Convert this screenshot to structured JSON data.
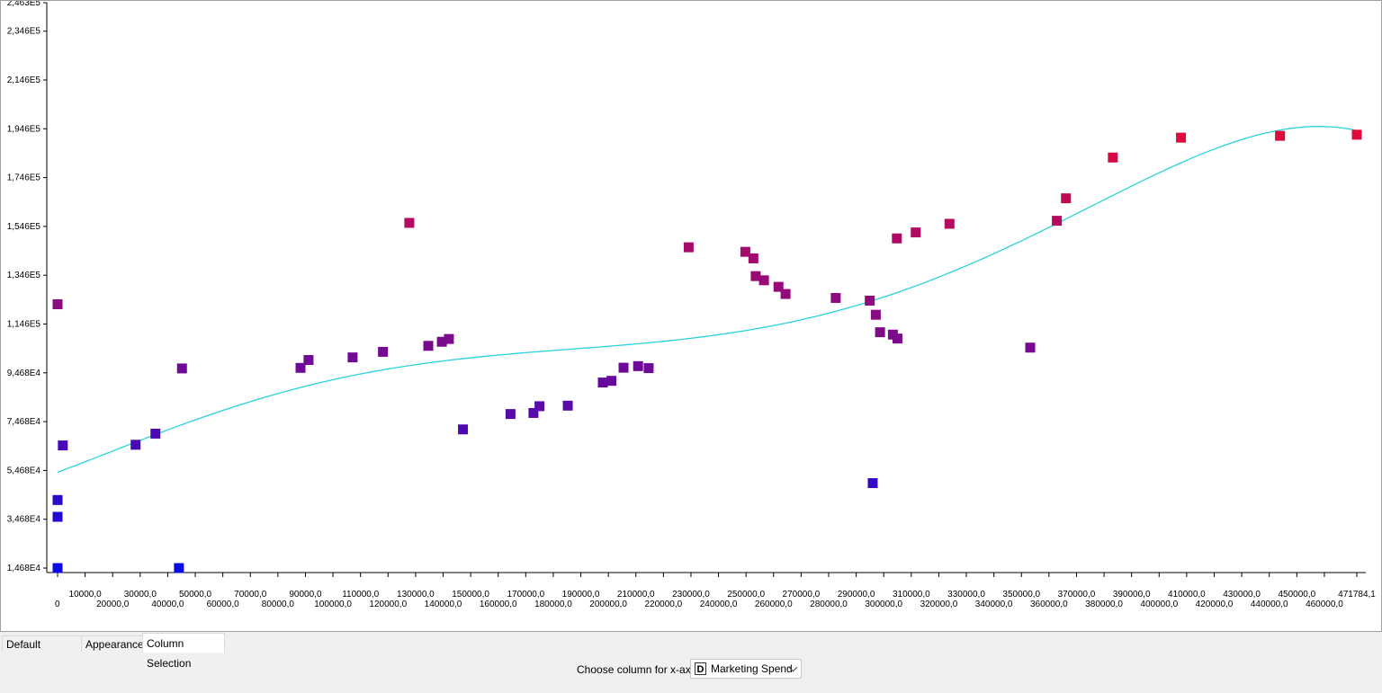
{
  "chart_data": {
    "type": "scatter",
    "x_ticks": [
      "0",
      "10000,0",
      "20000,0",
      "30000,0",
      "40000,0",
      "50000,0",
      "60000,0",
      "70000,0",
      "80000,0",
      "90000,0",
      "100000,0",
      "110000,0",
      "120000,0",
      "130000,0",
      "140000,0",
      "150000,0",
      "160000,0",
      "170000,0",
      "180000,0",
      "190000,0",
      "200000,0",
      "210000,0",
      "220000,0",
      "230000,0",
      "240000,0",
      "250000,0",
      "260000,0",
      "270000,0",
      "280000,0",
      "290000,0",
      "300000,0",
      "310000,0",
      "320000,0",
      "330000,0",
      "340000,0",
      "350000,0",
      "360000,0",
      "370000,0",
      "380000,0",
      "390000,0",
      "400000,0",
      "410000,0",
      "420000,0",
      "430000,0",
      "440000,0",
      "450000,0",
      "460000,0",
      "471784,1"
    ],
    "y_ticks": [
      {
        "label": "1,468E4",
        "value": 14681
      },
      {
        "label": "3,468E4",
        "value": 34681
      },
      {
        "label": "5,468E4",
        "value": 54681
      },
      {
        "label": "7,468E4",
        "value": 74681
      },
      {
        "label": "9,468E4",
        "value": 94681
      },
      {
        "label": "1,146E5",
        "value": 114681
      },
      {
        "label": "1,346E5",
        "value": 134681
      },
      {
        "label": "1,546E5",
        "value": 154681
      },
      {
        "label": "1,746E5",
        "value": 174681
      },
      {
        "label": "1,946E5",
        "value": 194681
      },
      {
        "label": "2,146E5",
        "value": 214681
      },
      {
        "label": "2,346E5",
        "value": 234681
      },
      {
        "label": "2,463E5",
        "value": 246347
      }
    ],
    "xlim": [
      0,
      471784.1
    ],
    "ylim": [
      14681,
      246347
    ],
    "points": [
      {
        "x": 0,
        "y": 122777
      },
      {
        "x": 1903,
        "y": 64926
      },
      {
        "x": 0,
        "y": 42559
      },
      {
        "x": 0,
        "y": 35673
      },
      {
        "x": 0,
        "y": 14681
      },
      {
        "x": 28334,
        "y": 65200
      },
      {
        "x": 35534,
        "y": 69759
      },
      {
        "x": 44070,
        "y": 14681
      },
      {
        "x": 45173,
        "y": 96479
      },
      {
        "x": 88219,
        "y": 96712
      },
      {
        "x": 91131,
        "y": 99937
      },
      {
        "x": 107138,
        "y": 101004
      },
      {
        "x": 118148,
        "y": 103282
      },
      {
        "x": 127716,
        "y": 156123
      },
      {
        "x": 134615,
        "y": 105734
      },
      {
        "x": 139553,
        "y": 107404
      },
      {
        "x": 142107,
        "y": 108552
      },
      {
        "x": 147198,
        "y": 71498
      },
      {
        "x": 164470,
        "y": 77798
      },
      {
        "x": 172795,
        "y": 78240
      },
      {
        "x": 174999,
        "y": 81006
      },
      {
        "x": 185265,
        "y": 81229
      },
      {
        "x": 198000,
        "y": 90708
      },
      {
        "x": 201126,
        "y": 91400
      },
      {
        "x": 205517,
        "y": 96778
      },
      {
        "x": 210797,
        "y": 97427
      },
      {
        "x": 214634,
        "y": 96605
      },
      {
        "x": 229161,
        "y": 146122
      },
      {
        "x": 249744,
        "y": 144259
      },
      {
        "x": 252664,
        "y": 141586
      },
      {
        "x": 253512,
        "y": 134307
      },
      {
        "x": 256513,
        "y": 132602
      },
      {
        "x": 261776,
        "y": 129917
      },
      {
        "x": 264346,
        "y": 126993
      },
      {
        "x": 282574,
        "y": 125370
      },
      {
        "x": 294920,
        "y": 124267
      },
      {
        "x": 296000,
        "y": 49490
      },
      {
        "x": 297114,
        "y": 118474
      },
      {
        "x": 298664,
        "y": 111313
      },
      {
        "x": 303319,
        "y": 110352
      },
      {
        "x": 304981,
        "y": 108733
      },
      {
        "x": 304768,
        "y": 149760
      },
      {
        "x": 311613,
        "y": 152212
      },
      {
        "x": 323877,
        "y": 155753
      },
      {
        "x": 353183,
        "y": 105008
      },
      {
        "x": 362861,
        "y": 156991
      },
      {
        "x": 366168,
        "y": 166188
      },
      {
        "x": 383199,
        "y": 182902
      },
      {
        "x": 407934,
        "y": 191050
      },
      {
        "x": 443898,
        "y": 191792
      },
      {
        "x": 471784,
        "y": 192262
      }
    ],
    "regression_line": true,
    "colors": {
      "line": "#2ad2dc",
      "low": "#0a0ae6",
      "high": "#e00a3c",
      "axis": "#000000"
    }
  },
  "tabs": [
    "Default Settings",
    "Appearance",
    "Column Selection"
  ],
  "controls": {
    "xaxis_label": "Choose column for x-axis",
    "column_type": "D",
    "column_name": "Marketing Spend"
  }
}
